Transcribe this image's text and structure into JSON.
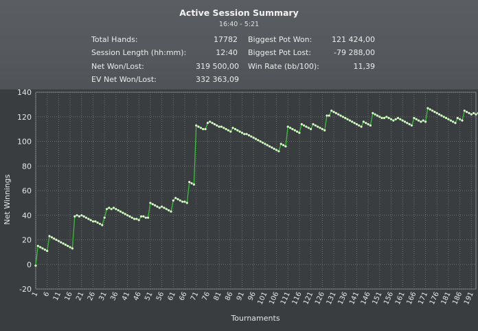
{
  "header": {
    "title": "Active Session Summary",
    "time_range": "16:40 - 5:21",
    "stats_left": [
      {
        "label": "Total Hands:",
        "value": "17782"
      },
      {
        "label": "Session Length (hh:mm):",
        "value": "12:40"
      },
      {
        "label": "Net Won/Lost:",
        "value": "319 500,00"
      },
      {
        "label": "EV Net Won/Lost:",
        "value": "332 363,09"
      }
    ],
    "stats_right": [
      {
        "label": "Biggest Pot Won:",
        "value": "121 424,00"
      },
      {
        "label": "Biggest Pot Lost:",
        "value": "-79 288,00"
      },
      {
        "label": "Win Rate (bb/100):",
        "value": "11,39"
      }
    ]
  },
  "colors": {
    "line": "#35c435",
    "marker": "#d8f5c8",
    "grid": "#6a6e72",
    "plot_bg": "#3a3d40"
  },
  "chart_data": {
    "type": "line",
    "xlabel": "Tournaments",
    "ylabel": "Net Winnings",
    "ylim": [
      -20,
      140
    ],
    "yticks": [
      -20,
      0,
      20,
      40,
      60,
      80,
      100,
      120,
      140
    ],
    "xlim": [
      1,
      193
    ],
    "xticks": [
      1,
      6,
      11,
      16,
      21,
      26,
      31,
      36,
      41,
      46,
      51,
      56,
      61,
      66,
      71,
      76,
      81,
      86,
      91,
      96,
      101,
      106,
      111,
      116,
      121,
      126,
      131,
      136,
      141,
      146,
      151,
      156,
      161,
      166,
      171,
      176,
      181,
      186,
      191
    ],
    "grid": true,
    "legend": "none",
    "series": [
      {
        "values": [
          -1,
          15,
          14,
          13,
          12,
          11,
          23,
          22,
          21,
          20,
          19,
          18,
          17,
          16,
          15,
          14,
          13,
          39,
          40,
          39,
          40,
          39,
          38,
          37,
          36,
          35,
          35,
          34,
          33,
          32,
          38,
          45,
          46,
          45,
          46,
          45,
          44,
          43,
          42,
          41,
          40,
          39,
          38,
          37,
          37,
          36,
          39,
          39,
          38,
          38,
          50,
          49,
          48,
          47,
          46,
          47,
          46,
          45,
          44,
          43,
          52,
          54,
          53,
          52,
          51,
          51,
          50,
          67,
          66,
          65,
          113,
          112,
          111,
          110,
          110,
          115,
          116,
          115,
          114,
          113,
          112,
          112,
          111,
          110,
          109,
          108,
          111,
          110,
          109,
          108,
          107,
          106,
          106,
          105,
          104,
          103,
          102,
          101,
          100,
          99,
          98,
          97,
          96,
          95,
          94,
          93,
          92,
          98,
          97,
          96,
          112,
          111,
          110,
          109,
          108,
          107,
          114,
          113,
          112,
          111,
          110,
          114,
          113,
          112,
          111,
          110,
          109,
          121,
          121,
          125,
          124,
          123,
          122,
          121,
          120,
          119,
          118,
          117,
          116,
          115,
          114,
          113,
          112,
          116,
          115,
          114,
          113,
          123,
          122,
          121,
          120,
          119,
          119,
          120,
          119,
          118,
          117,
          118,
          119,
          118,
          117,
          116,
          115,
          114,
          113,
          119,
          118,
          117,
          116,
          117,
          116,
          127,
          126,
          125,
          124,
          123,
          122,
          121,
          120,
          119,
          118,
          117,
          116,
          115,
          119,
          118,
          117,
          125,
          124,
          123,
          122,
          123,
          122,
          123,
          122
        ]
      }
    ]
  }
}
